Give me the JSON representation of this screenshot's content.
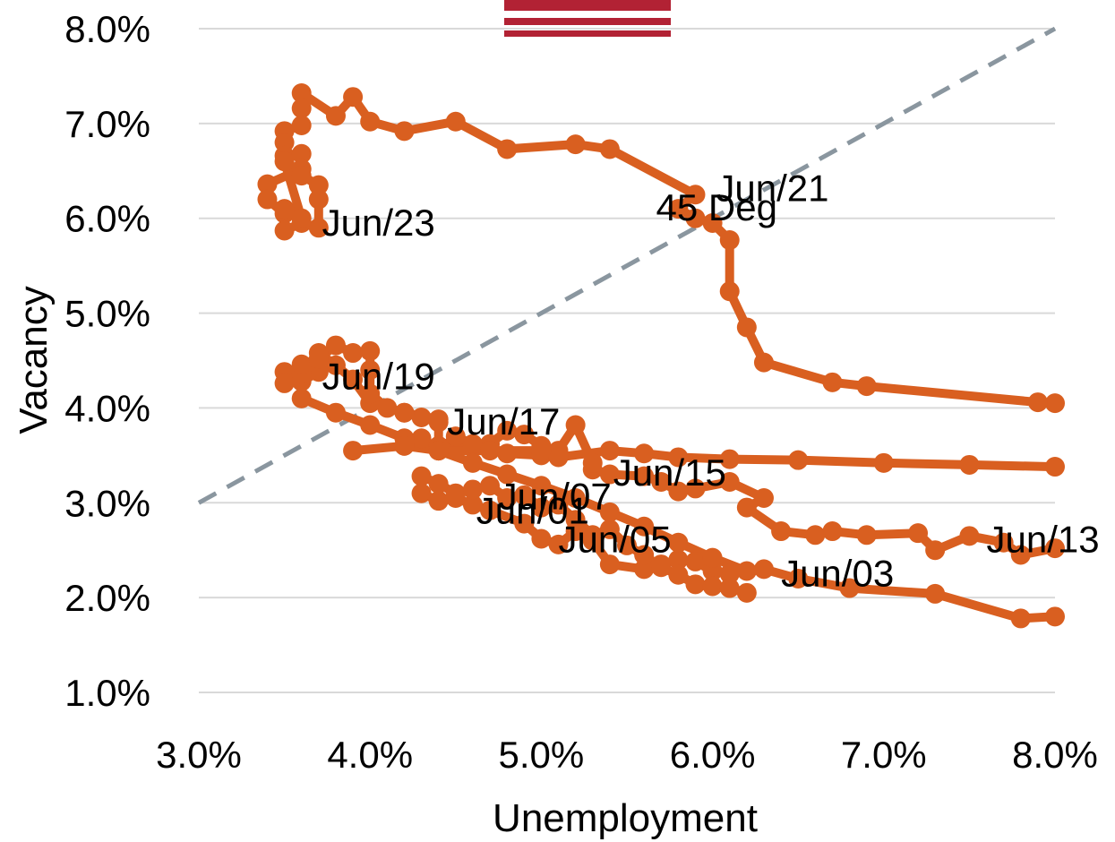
{
  "chart_data": {
    "type": "scatter",
    "xlabel": "Unemployment",
    "ylabel": "Vacancy",
    "xlim": [
      3.0,
      8.0
    ],
    "ylim": [
      1.0,
      8.0
    ],
    "x_ticks": [
      "3.0%",
      "4.0%",
      "5.0%",
      "6.0%",
      "7.0%",
      "8.0%"
    ],
    "y_ticks": [
      "1.0%",
      "2.0%",
      "3.0%",
      "4.0%",
      "5.0%",
      "6.0%",
      "7.0%",
      "8.0%"
    ],
    "grid": "horizontal",
    "colors": {
      "series": "#D95F20",
      "reference": "#8A969F",
      "grid": "#D9D9D9",
      "flag_red": "#B22234"
    },
    "reference_line": {
      "label": "45 Deg",
      "points": [
        [
          3.0,
          3.0
        ],
        [
          8.0,
          8.0
        ]
      ]
    },
    "series": [
      {
        "points": [
          [
            8.0,
            1.8
          ],
          [
            7.8,
            1.78
          ],
          [
            7.3,
            2.04
          ],
          [
            6.8,
            2.1
          ],
          [
            6.5,
            2.2
          ],
          [
            6.3,
            2.3
          ],
          [
            6.1,
            2.25
          ],
          [
            6.0,
            2.28
          ],
          [
            5.9,
            2.38
          ],
          [
            5.8,
            2.4
          ],
          [
            5.7,
            2.35
          ],
          [
            5.6,
            2.3
          ],
          [
            5.4,
            2.35
          ],
          [
            5.3,
            2.6
          ],
          [
            5.2,
            2.7
          ],
          [
            5.1,
            2.56
          ],
          [
            5.0,
            2.62
          ],
          [
            4.9,
            2.78
          ],
          [
            4.7,
            2.92
          ],
          [
            4.6,
            2.98
          ],
          [
            4.5,
            3.05
          ],
          [
            4.4,
            3.02
          ],
          [
            4.3,
            3.1
          ],
          [
            4.3,
            3.28
          ],
          [
            4.4,
            3.2
          ],
          [
            4.5,
            3.1
          ],
          [
            4.6,
            3.14
          ],
          [
            4.7,
            3.18
          ],
          [
            4.8,
            3.05
          ],
          [
            4.9,
            3.08
          ],
          [
            5.0,
            2.95
          ],
          [
            5.1,
            2.98
          ],
          [
            5.2,
            2.82
          ],
          [
            5.3,
            2.66
          ],
          [
            5.4,
            2.72
          ],
          [
            5.5,
            2.55
          ],
          [
            5.6,
            2.45
          ],
          [
            5.7,
            2.32
          ],
          [
            5.8,
            2.24
          ],
          [
            5.9,
            2.14
          ],
          [
            6.0,
            2.12
          ],
          [
            6.1,
            2.1
          ],
          [
            6.2,
            2.05
          ]
        ]
      },
      {
        "points": [
          [
            8.0,
            2.52
          ],
          [
            7.8,
            2.45
          ],
          [
            7.7,
            2.58
          ],
          [
            7.5,
            2.65
          ],
          [
            7.3,
            2.5
          ],
          [
            7.2,
            2.68
          ],
          [
            6.9,
            2.66
          ],
          [
            6.7,
            2.7
          ],
          [
            6.6,
            2.66
          ],
          [
            6.4,
            2.7
          ],
          [
            6.2,
            2.95
          ],
          [
            6.3,
            3.05
          ],
          [
            6.1,
            3.22
          ],
          [
            5.9,
            3.15
          ],
          [
            5.8,
            3.12
          ],
          [
            5.7,
            3.22
          ],
          [
            5.6,
            3.28
          ],
          [
            5.4,
            3.3
          ],
          [
            5.3,
            3.35
          ],
          [
            5.3,
            3.42
          ],
          [
            5.2,
            3.82
          ],
          [
            5.1,
            3.55
          ],
          [
            5.0,
            3.6
          ],
          [
            4.9,
            3.72
          ],
          [
            4.8,
            3.76
          ],
          [
            4.7,
            3.62
          ],
          [
            4.6,
            3.62
          ],
          [
            4.5,
            3.7
          ],
          [
            4.4,
            3.55
          ],
          [
            4.3,
            3.68
          ],
          [
            4.2,
            3.6
          ]
        ]
      },
      {
        "points": [
          [
            4.4,
            3.85
          ],
          [
            4.3,
            3.9
          ],
          [
            4.2,
            3.95
          ],
          [
            4.0,
            4.05
          ],
          [
            3.9,
            4.3
          ],
          [
            3.8,
            4.45
          ],
          [
            3.7,
            4.58
          ],
          [
            3.7,
            4.38
          ],
          [
            3.6,
            4.28
          ],
          [
            3.5,
            4.38
          ],
          [
            3.5,
            4.26
          ],
          [
            3.6,
            4.36
          ],
          [
            3.6,
            4.46
          ],
          [
            3.7,
            4.52
          ],
          [
            3.8,
            4.66
          ],
          [
            3.9,
            4.58
          ],
          [
            4.0,
            4.6
          ],
          [
            4.0,
            4.4
          ],
          [
            4.0,
            4.15
          ],
          [
            4.1,
            4.0
          ],
          [
            4.2,
            3.95
          ],
          [
            4.4,
            3.88
          ],
          [
            4.4,
            3.6
          ],
          [
            4.7,
            3.55
          ],
          [
            4.8,
            3.52
          ],
          [
            5.0,
            3.5
          ],
          [
            5.1,
            3.48
          ],
          [
            5.4,
            3.55
          ],
          [
            5.6,
            3.52
          ],
          [
            5.8,
            3.48
          ],
          [
            6.1,
            3.46
          ],
          [
            6.5,
            3.45
          ],
          [
            7.0,
            3.42
          ],
          [
            7.5,
            3.4
          ],
          [
            8.0,
            3.38
          ]
        ]
      },
      {
        "points": [
          [
            3.6,
            4.1
          ],
          [
            3.8,
            3.95
          ],
          [
            4.0,
            3.82
          ],
          [
            4.2,
            3.68
          ],
          [
            4.4,
            3.55
          ],
          [
            4.6,
            3.42
          ],
          [
            4.8,
            3.3
          ],
          [
            5.0,
            3.18
          ],
          [
            5.2,
            3.05
          ],
          [
            5.4,
            2.9
          ],
          [
            5.6,
            2.75
          ],
          [
            5.8,
            2.58
          ],
          [
            6.0,
            2.42
          ],
          [
            6.2,
            2.28
          ]
        ]
      },
      {
        "points": [
          [
            3.9,
            3.55
          ],
          [
            4.2,
            3.6
          ],
          [
            4.4,
            3.55
          ],
          [
            5.0,
            3.55
          ]
        ]
      },
      {
        "points": [
          [
            8.0,
            4.05
          ],
          [
            7.9,
            4.06
          ],
          [
            6.9,
            4.23
          ],
          [
            6.7,
            4.27
          ],
          [
            6.3,
            4.48
          ],
          [
            6.2,
            4.85
          ],
          [
            6.1,
            5.23
          ],
          [
            6.1,
            5.77
          ],
          [
            6.0,
            5.95
          ],
          [
            5.9,
            6.0
          ],
          [
            5.8,
            6.1
          ],
          [
            5.9,
            6.25
          ],
          [
            5.4,
            6.73
          ],
          [
            5.2,
            6.78
          ],
          [
            4.8,
            6.73
          ],
          [
            4.5,
            7.02
          ],
          [
            4.2,
            6.92
          ],
          [
            4.0,
            7.02
          ],
          [
            3.9,
            7.28
          ],
          [
            3.8,
            7.08
          ],
          [
            3.6,
            7.32
          ],
          [
            3.6,
            7.16
          ],
          [
            3.6,
            6.98
          ],
          [
            3.5,
            6.92
          ],
          [
            3.5,
            6.8
          ],
          [
            3.5,
            6.66
          ],
          [
            3.6,
            6.68
          ],
          [
            3.6,
            6.52
          ],
          [
            3.4,
            6.36
          ],
          [
            3.4,
            6.2
          ],
          [
            3.5,
            6.05
          ],
          [
            3.5,
            5.87
          ],
          [
            3.6,
            5.95
          ],
          [
            3.7,
            5.9
          ],
          [
            3.7,
            6.2
          ],
          [
            3.7,
            6.35
          ],
          [
            3.6,
            6.45
          ],
          [
            3.5,
            6.6
          ],
          [
            3.6,
            6.0
          ],
          [
            3.5,
            6.1
          ]
        ]
      }
    ],
    "annotations": [
      {
        "text": "Jun/23",
        "x": 3.72,
        "y": 5.82
      },
      {
        "text": "Jun/21",
        "x": 6.02,
        "y": 6.18
      },
      {
        "text": "45 Deg",
        "x": 5.67,
        "y": 5.98
      },
      {
        "text": "Jun/19",
        "x": 3.72,
        "y": 4.2
      },
      {
        "text": "Jun/17",
        "x": 4.45,
        "y": 3.72
      },
      {
        "text": "Jun/15",
        "x": 5.42,
        "y": 3.18
      },
      {
        "text": "Jun/07",
        "x": 4.75,
        "y": 2.93
      },
      {
        "text": "Jun/01",
        "x": 4.62,
        "y": 2.78
      },
      {
        "text": "Jun/05",
        "x": 5.1,
        "y": 2.48
      },
      {
        "text": "Jun/03",
        "x": 6.4,
        "y": 2.12
      },
      {
        "text": "Jun/13",
        "x": 7.6,
        "y": 2.48
      }
    ]
  }
}
